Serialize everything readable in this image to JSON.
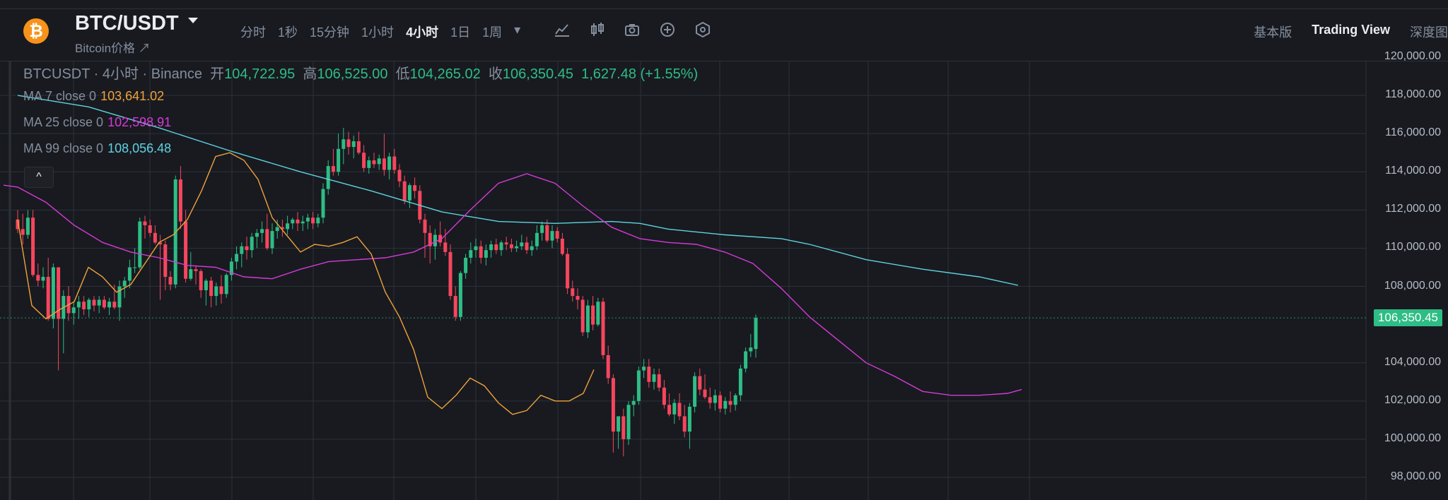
{
  "header": {
    "coin_glyph": "₿",
    "pair": "BTC/USDT",
    "subtitle": "Bitcoin价格 ↗",
    "intervals": [
      "分时",
      "1秒",
      "15分钟",
      "1小时",
      "4小时",
      "1日",
      "1周"
    ],
    "active_interval": "4小时",
    "tools": [
      "indicator-icon",
      "candle-type-icon",
      "camera-icon",
      "plus-circle-icon",
      "settings-hex-icon"
    ],
    "views": [
      "基本版",
      "Trading View",
      "深度图"
    ],
    "active_view": "Trading View"
  },
  "legend": {
    "symbol": "BTCUSDT · 4小时 · Binance",
    "open_label": "开",
    "open": "104,722.95",
    "high_label": "高",
    "high": "106,525.00",
    "low_label": "低",
    "low": "104,265.02",
    "close_label": "收",
    "close": "106,350.45",
    "change": "1,627.48 (+1.55%)"
  },
  "ma": [
    {
      "label": "MA 7 close 0",
      "value": "103,641.02",
      "color": "#f0a23a"
    },
    {
      "label": "MA 25 close 0",
      "value": "102,598.91",
      "color": "#d63ad6"
    },
    {
      "label": "MA 99 close 0",
      "value": "108,056.48",
      "color": "#5fd3e0"
    }
  ],
  "collapse_glyph": "^",
  "price_tag": "106,350.45",
  "colors": {
    "up": "#2ebd85",
    "down": "#f6465d",
    "grid": "#2b3139",
    "bg": "#181a20"
  },
  "chart_data": {
    "type": "candlestick",
    "interval": "4小时",
    "ylim": [
      97000,
      121000
    ],
    "yticks": [
      "120,000.00",
      "118,000.00",
      "116,000.00",
      "114,000.00",
      "112,000.00",
      "110,000.00",
      "108,000.00",
      "104,000.00",
      "102,000.00",
      "100,000.00",
      "98,000.00"
    ],
    "ytick_values": [
      120000,
      118000,
      116000,
      114000,
      112000,
      110000,
      108000,
      104000,
      102000,
      100000,
      98000
    ],
    "last_price": 106350.45,
    "ohlc": [
      [
        111500,
        112000,
        110800,
        111000
      ],
      [
        111000,
        111800,
        110200,
        110700
      ],
      [
        110700,
        112000,
        110500,
        111600
      ],
      [
        111600,
        112000,
        108500,
        108600
      ],
      [
        108600,
        109200,
        108000,
        108300
      ],
      [
        108300,
        109000,
        107900,
        108500
      ],
      [
        108500,
        109500,
        106200,
        106300
      ],
      [
        106300,
        109200,
        105800,
        109000
      ],
      [
        109000,
        109000,
        103600,
        106300
      ],
      [
        106300,
        107800,
        104500,
        107500
      ],
      [
        107500,
        108000,
        106200,
        106600
      ],
      [
        106600,
        107200,
        106000,
        106900
      ],
      [
        106900,
        107500,
        106300,
        107200
      ],
      [
        107200,
        107500,
        106500,
        106800
      ],
      [
        106800,
        107400,
        106400,
        107300
      ],
      [
        107300,
        107500,
        106700,
        107000
      ],
      [
        107000,
        107500,
        106600,
        107300
      ],
      [
        107300,
        107500,
        106800,
        106900
      ],
      [
        106900,
        107400,
        106500,
        107200
      ],
      [
        107200,
        108100,
        106800,
        106900
      ],
      [
        106900,
        108300,
        106200,
        108000
      ],
      [
        108000,
        108500,
        107400,
        108300
      ],
      [
        108300,
        109400,
        107900,
        109000
      ],
      [
        109000,
        110000,
        108700,
        109000
      ],
      [
        109000,
        111600,
        108900,
        111400
      ],
      [
        111400,
        111700,
        110500,
        111200
      ],
      [
        111200,
        111500,
        110600,
        110800
      ],
      [
        110800,
        111200,
        110200,
        110300
      ],
      [
        110300,
        110700,
        107300,
        110200
      ],
      [
        110200,
        110400,
        107800,
        108500
      ],
      [
        108500,
        108800,
        107800,
        108100
      ],
      [
        108100,
        113800,
        107900,
        113600
      ],
      [
        113600,
        114300,
        111000,
        111400
      ],
      [
        111400,
        112000,
        108200,
        108400
      ],
      [
        108400,
        109800,
        108300,
        108900
      ],
      [
        108900,
        109100,
        108100,
        108800
      ],
      [
        108800,
        108900,
        107400,
        107800
      ],
      [
        107800,
        108400,
        107000,
        108300
      ],
      [
        108300,
        108500,
        106900,
        107500
      ],
      [
        107500,
        108200,
        107000,
        108000
      ],
      [
        108000,
        108600,
        107100,
        107600
      ],
      [
        107600,
        108700,
        107400,
        108600
      ],
      [
        108600,
        109500,
        108300,
        109300
      ],
      [
        109300,
        110100,
        108900,
        109700
      ],
      [
        109700,
        110300,
        109000,
        110100
      ],
      [
        110100,
        110600,
        109400,
        109900
      ],
      [
        109900,
        110800,
        109500,
        110600
      ],
      [
        110600,
        111000,
        110000,
        110800
      ],
      [
        110800,
        111400,
        110300,
        111000
      ],
      [
        111000,
        111800,
        109900,
        110000
      ],
      [
        110000,
        111300,
        109700,
        110900
      ],
      [
        110900,
        111500,
        110500,
        111100
      ],
      [
        111100,
        111500,
        110600,
        111000
      ],
      [
        111000,
        111700,
        110700,
        111300
      ],
      [
        111300,
        111600,
        111000,
        111500
      ],
      [
        111500,
        111900,
        110900,
        111300
      ],
      [
        111300,
        111700,
        110900,
        111400
      ],
      [
        111400,
        111800,
        111000,
        111600
      ],
      [
        111600,
        111900,
        111000,
        111300
      ],
      [
        111300,
        111800,
        111100,
        111600
      ],
      [
        111600,
        113400,
        111300,
        113100
      ],
      [
        113100,
        114600,
        112800,
        114300
      ],
      [
        114300,
        115200,
        113800,
        114000
      ],
      [
        114000,
        116000,
        113800,
        115200
      ],
      [
        115200,
        116300,
        114400,
        115700
      ],
      [
        115700,
        116100,
        114900,
        115300
      ],
      [
        115300,
        115900,
        114700,
        115600
      ],
      [
        115600,
        116100,
        114900,
        115000
      ],
      [
        115000,
        115400,
        114000,
        114200
      ],
      [
        114200,
        114800,
        113900,
        114600
      ],
      [
        114600,
        115000,
        114200,
        114400
      ],
      [
        114400,
        114900,
        114100,
        114700
      ],
      [
        114700,
        116000,
        113800,
        114100
      ],
      [
        114100,
        115000,
        113600,
        114800
      ],
      [
        114800,
        115200,
        113900,
        114100
      ],
      [
        114100,
        114400,
        113200,
        113500
      ],
      [
        113500,
        113800,
        112300,
        112500
      ],
      [
        112500,
        113400,
        112100,
        113300
      ],
      [
        113300,
        113700,
        112600,
        113000
      ],
      [
        113000,
        113300,
        111300,
        111500
      ],
      [
        111500,
        111800,
        109500,
        110800
      ],
      [
        110800,
        111200,
        109200,
        110100
      ],
      [
        110100,
        111000,
        109400,
        110700
      ],
      [
        110700,
        111400,
        110100,
        110300
      ],
      [
        110300,
        111000,
        109600,
        109800
      ],
      [
        109800,
        110200,
        107300,
        107500
      ],
      [
        107500,
        108000,
        106200,
        106400
      ],
      [
        106400,
        108800,
        106200,
        108700
      ],
      [
        108700,
        109700,
        108400,
        109500
      ],
      [
        109500,
        110300,
        109200,
        109900
      ],
      [
        109900,
        110500,
        109500,
        110100
      ],
      [
        110100,
        110400,
        109200,
        109500
      ],
      [
        109500,
        110200,
        109100,
        109900
      ],
      [
        109900,
        110400,
        109500,
        110200
      ],
      [
        110200,
        110500,
        109700,
        109900
      ],
      [
        109900,
        110400,
        109600,
        110300
      ],
      [
        110300,
        110600,
        109900,
        110200
      ],
      [
        110200,
        110500,
        109800,
        110000
      ],
      [
        110000,
        110400,
        109800,
        110100
      ],
      [
        110100,
        110700,
        109900,
        110300
      ],
      [
        110300,
        110600,
        109700,
        109900
      ],
      [
        109900,
        110400,
        109600,
        110100
      ],
      [
        110100,
        111200,
        109900,
        110800
      ],
      [
        110800,
        111400,
        110400,
        111200
      ],
      [
        111200,
        111500,
        110300,
        110400
      ],
      [
        110400,
        111200,
        110000,
        110900
      ],
      [
        110900,
        111100,
        110300,
        110500
      ],
      [
        110500,
        110800,
        109600,
        109700
      ],
      [
        109700,
        110000,
        107600,
        107900
      ],
      [
        107900,
        108300,
        107200,
        107500
      ],
      [
        107500,
        107900,
        106800,
        107300
      ],
      [
        107300,
        107500,
        105400,
        105600
      ],
      [
        105600,
        107300,
        105300,
        107000
      ],
      [
        107000,
        107500,
        105700,
        106000
      ],
      [
        106000,
        107400,
        105900,
        107200
      ],
      [
        107200,
        107400,
        104200,
        104400
      ],
      [
        104400,
        104900,
        102900,
        103200
      ],
      [
        103200,
        103400,
        99300,
        100400
      ],
      [
        100400,
        101200,
        99500,
        101200
      ],
      [
        101200,
        101600,
        99100,
        100000
      ],
      [
        100000,
        102000,
        99700,
        101800
      ],
      [
        101800,
        102300,
        101200,
        102000
      ],
      [
        102000,
        103800,
        101800,
        103600
      ],
      [
        103600,
        104200,
        103200,
        103800
      ],
      [
        103800,
        104200,
        102700,
        103000
      ],
      [
        103000,
        103700,
        102600,
        103400
      ],
      [
        103400,
        103700,
        102500,
        102700
      ],
      [
        102700,
        103100,
        101600,
        101800
      ],
      [
        101800,
        102400,
        101200,
        101300
      ],
      [
        101300,
        102100,
        100800,
        101900
      ],
      [
        101900,
        102400,
        101000,
        101200
      ],
      [
        101200,
        101800,
        100100,
        100400
      ],
      [
        100400,
        101900,
        99500,
        101700
      ],
      [
        101700,
        103500,
        101400,
        103300
      ],
      [
        103300,
        103700,
        102300,
        102600
      ],
      [
        102600,
        103400,
        102100,
        102200
      ],
      [
        102200,
        102700,
        101600,
        101900
      ],
      [
        101900,
        102600,
        101500,
        102300
      ],
      [
        102300,
        102500,
        101400,
        101600
      ],
      [
        101600,
        102200,
        101300,
        102000
      ],
      [
        102000,
        102500,
        101400,
        101800
      ],
      [
        101800,
        102400,
        101500,
        102300
      ],
      [
        102300,
        103900,
        102000,
        103700
      ],
      [
        103700,
        104800,
        103500,
        104600
      ],
      [
        104600,
        105500,
        104300,
        104800
      ],
      [
        104722.95,
        106525,
        104265.02,
        106350.45
      ]
    ],
    "ma7": [
      [
        0,
        111500
      ],
      [
        20,
        107000
      ],
      [
        40,
        106300
      ],
      [
        60,
        106800
      ],
      [
        80,
        107200
      ],
      [
        100,
        109000
      ],
      [
        120,
        108500
      ],
      [
        140,
        107700
      ],
      [
        160,
        108100
      ],
      [
        180,
        109200
      ],
      [
        200,
        110300
      ],
      [
        220,
        110700
      ],
      [
        240,
        111500
      ],
      [
        260,
        113000
      ],
      [
        280,
        114800
      ],
      [
        300,
        115000
      ],
      [
        320,
        114600
      ],
      [
        340,
        113600
      ],
      [
        360,
        111600
      ],
      [
        380,
        110700
      ],
      [
        400,
        109800
      ],
      [
        420,
        110200
      ],
      [
        440,
        110100
      ],
      [
        460,
        110300
      ],
      [
        480,
        110600
      ],
      [
        500,
        109700
      ],
      [
        520,
        107700
      ],
      [
        540,
        106400
      ],
      [
        560,
        104700
      ],
      [
        580,
        102200
      ],
      [
        600,
        101600
      ],
      [
        620,
        102300
      ],
      [
        640,
        103200
      ],
      [
        660,
        102800
      ],
      [
        680,
        101900
      ],
      [
        700,
        101300
      ],
      [
        720,
        101500
      ],
      [
        740,
        102300
      ],
      [
        760,
        102000
      ],
      [
        780,
        102000
      ],
      [
        800,
        102400
      ],
      [
        815,
        103641
      ]
    ],
    "ma25": [
      [
        -20,
        113300
      ],
      [
        0,
        113200
      ],
      [
        40,
        112400
      ],
      [
        80,
        111200
      ],
      [
        120,
        110300
      ],
      [
        160,
        109800
      ],
      [
        200,
        109500
      ],
      [
        240,
        109100
      ],
      [
        280,
        109000
      ],
      [
        320,
        108500
      ],
      [
        360,
        108400
      ],
      [
        400,
        108900
      ],
      [
        440,
        109300
      ],
      [
        480,
        109400
      ],
      [
        520,
        109500
      ],
      [
        560,
        109800
      ],
      [
        600,
        110500
      ],
      [
        640,
        112000
      ],
      [
        680,
        113400
      ],
      [
        720,
        113900
      ],
      [
        760,
        113400
      ],
      [
        800,
        112200
      ],
      [
        840,
        111100
      ],
      [
        880,
        110500
      ],
      [
        920,
        110300
      ],
      [
        960,
        110200
      ],
      [
        1000,
        109800
      ],
      [
        1040,
        109200
      ],
      [
        1080,
        107900
      ],
      [
        1120,
        106400
      ],
      [
        1160,
        105200
      ],
      [
        1200,
        104000
      ],
      [
        1240,
        103300
      ],
      [
        1280,
        102500
      ],
      [
        1320,
        102300
      ],
      [
        1360,
        102300
      ],
      [
        1400,
        102400
      ],
      [
        1420,
        102599
      ]
    ],
    "ma99": [
      [
        0,
        118000
      ],
      [
        100,
        117400
      ],
      [
        200,
        116300
      ],
      [
        300,
        115100
      ],
      [
        400,
        114000
      ],
      [
        500,
        113000
      ],
      [
        600,
        111900
      ],
      [
        680,
        111400
      ],
      [
        760,
        111300
      ],
      [
        840,
        111400
      ],
      [
        880,
        111300
      ],
      [
        920,
        111000
      ],
      [
        1000,
        110700
      ],
      [
        1080,
        110500
      ],
      [
        1120,
        110200
      ],
      [
        1200,
        109400
      ],
      [
        1280,
        108900
      ],
      [
        1360,
        108500
      ],
      [
        1415,
        108056
      ]
    ]
  }
}
